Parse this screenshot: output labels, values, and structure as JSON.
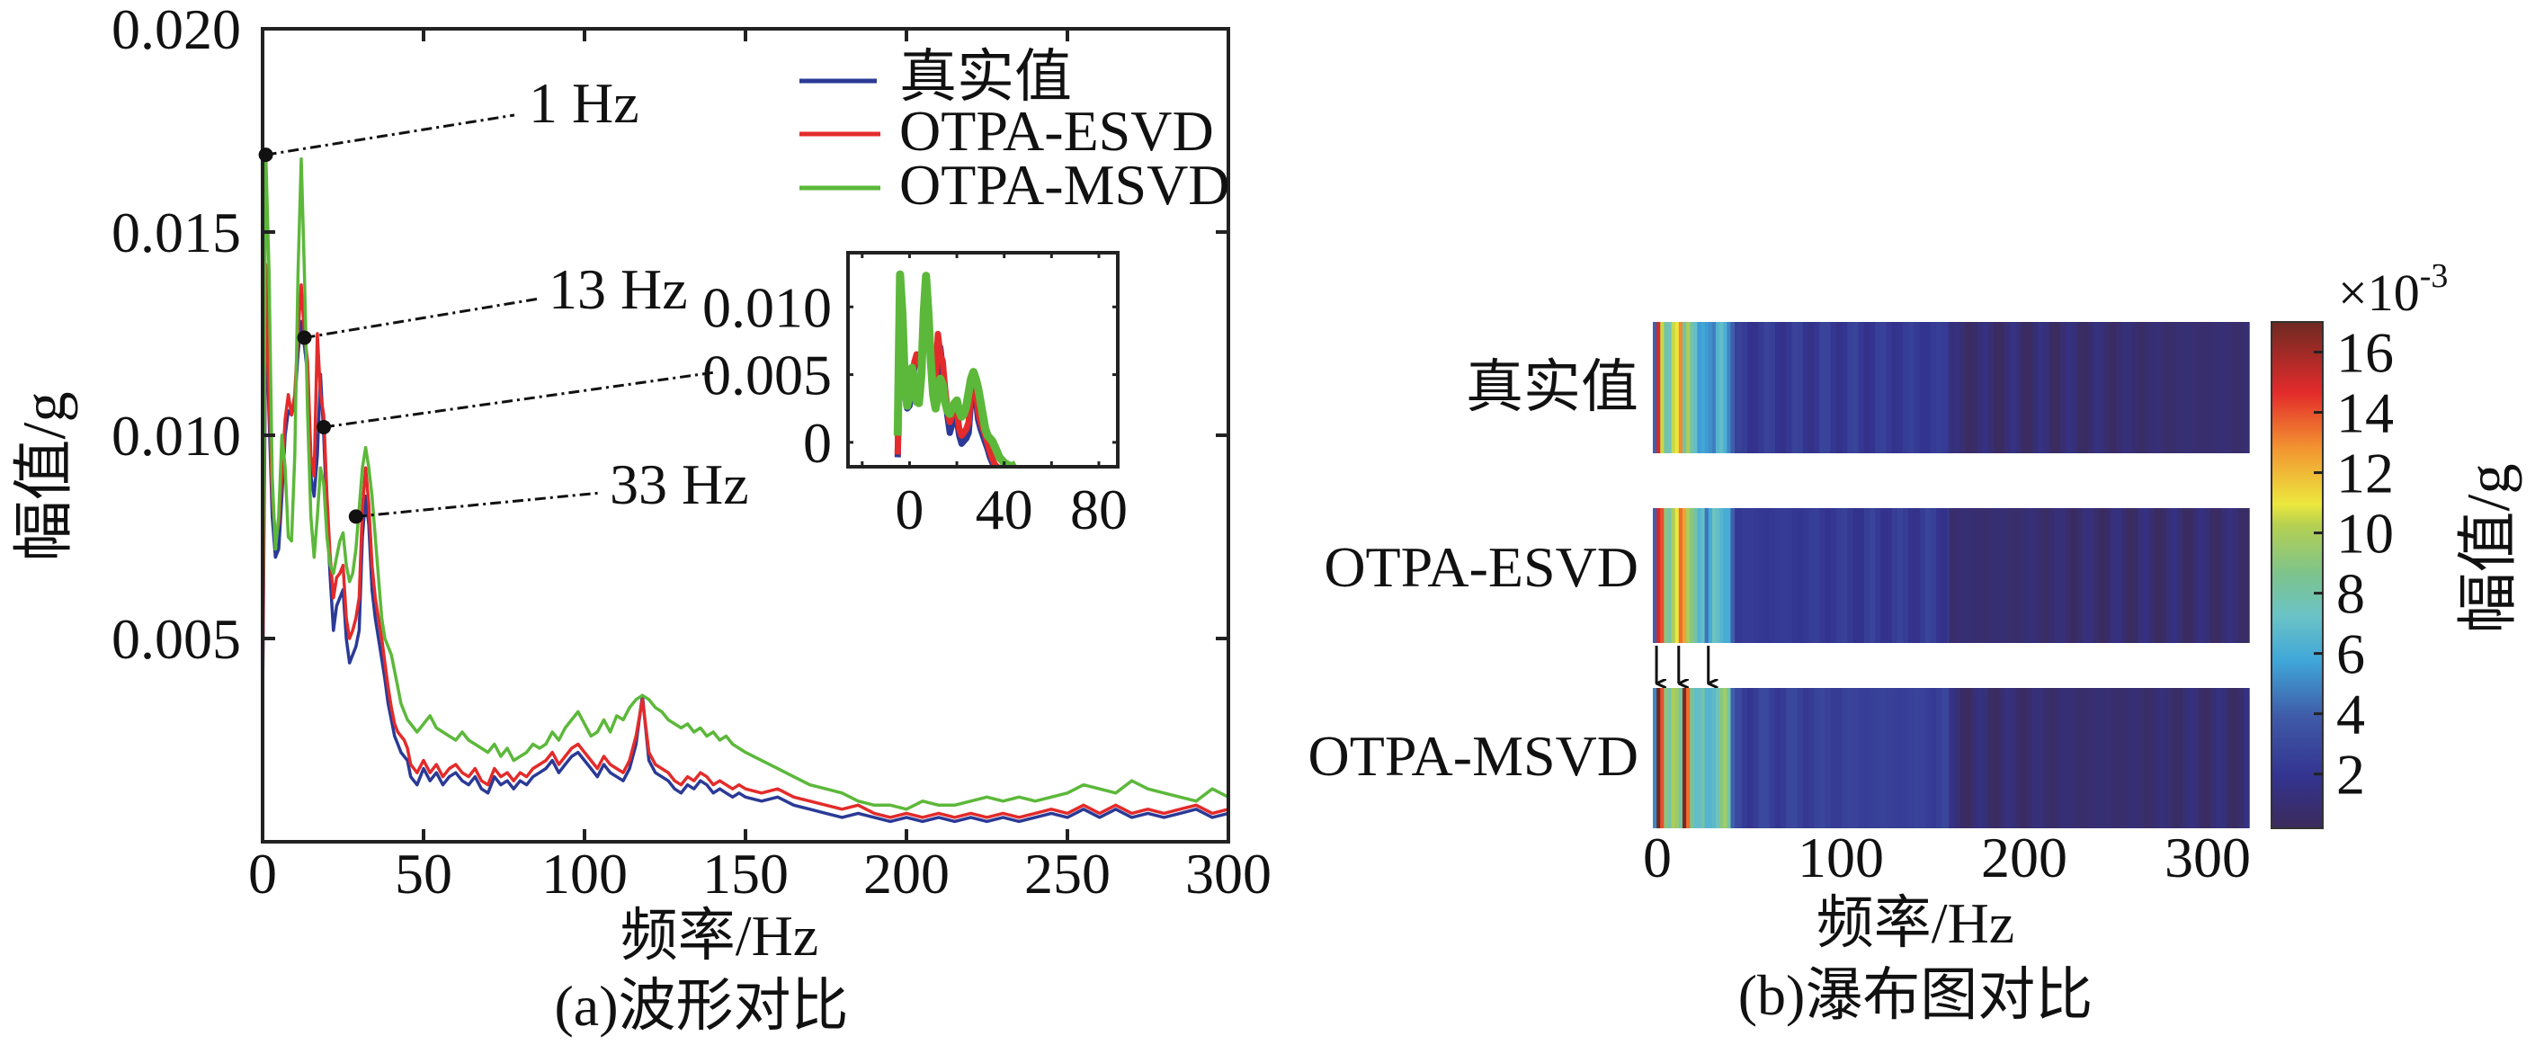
{
  "chart_data": [
    {
      "id": "a",
      "type": "line",
      "caption": "(a)波形对比",
      "xlabel": "频率/Hz",
      "ylabel": "幅值/g",
      "xlim": [
        0,
        300
      ],
      "ylim": [
        0,
        0.02
      ],
      "xticks": [
        0,
        50,
        100,
        150,
        200,
        250,
        300
      ],
      "xtick_labels": [
        "0",
        "50",
        "100",
        "150",
        "200",
        "250",
        "300"
      ],
      "yticks": [
        0.005,
        0.01,
        0.015,
        0.02
      ],
      "ytick_labels": [
        "0.005",
        "0.010",
        "0.015",
        "0.020"
      ],
      "legend": {
        "placement": "top-right",
        "entries": [
          "真实值",
          "OTPA-ESVD",
          "OTPA-MSVD"
        ]
      },
      "series": [
        {
          "name": "真实值",
          "color": "#2b3a96",
          "x": [
            0,
            1,
            2,
            3,
            4,
            5,
            6,
            7,
            8,
            9,
            10,
            11,
            12,
            13,
            14,
            15,
            16,
            17,
            18,
            19,
            20,
            21,
            22,
            23,
            24,
            25,
            26,
            27,
            28,
            29,
            30,
            31,
            32,
            33,
            34,
            35,
            36,
            37,
            38,
            39,
            40,
            41,
            42,
            43,
            44,
            45,
            46,
            48,
            50,
            52,
            54,
            56,
            58,
            60,
            62,
            64,
            66,
            68,
            70,
            72,
            74,
            76,
            78,
            80,
            82,
            84,
            86,
            88,
            90,
            92,
            94,
            96,
            98,
            100,
            102,
            104,
            106,
            108,
            110,
            112,
            114,
            116,
            118,
            120,
            122,
            124,
            126,
            128,
            130,
            132,
            134,
            136,
            138,
            140,
            142,
            144,
            146,
            148,
            150,
            155,
            160,
            165,
            170,
            175,
            180,
            185,
            190,
            195,
            200,
            205,
            210,
            215,
            220,
            225,
            230,
            235,
            240,
            245,
            250,
            255,
            260,
            265,
            270,
            275,
            280,
            285,
            290,
            295,
            300
          ],
          "y": [
            0.0034,
            0.013,
            0.0105,
            0.008,
            0.007,
            0.0072,
            0.0085,
            0.01,
            0.0106,
            0.0105,
            0.0108,
            0.012,
            0.0128,
            0.0122,
            0.0115,
            0.009,
            0.0085,
            0.0095,
            0.0115,
            0.01,
            0.008,
            0.0065,
            0.0052,
            0.0058,
            0.006,
            0.0062,
            0.005,
            0.0044,
            0.0046,
            0.0048,
            0.0052,
            0.0075,
            0.0085,
            0.0078,
            0.0062,
            0.0055,
            0.005,
            0.0045,
            0.004,
            0.0034,
            0.003,
            0.0026,
            0.0024,
            0.0022,
            0.0021,
            0.002,
            0.0016,
            0.0014,
            0.0018,
            0.0015,
            0.0017,
            0.0014,
            0.0016,
            0.0017,
            0.0015,
            0.0014,
            0.0016,
            0.0013,
            0.0012,
            0.0016,
            0.0014,
            0.0015,
            0.0013,
            0.0015,
            0.0014,
            0.0016,
            0.0017,
            0.0018,
            0.002,
            0.0017,
            0.0019,
            0.0021,
            0.0022,
            0.002,
            0.0018,
            0.0016,
            0.0019,
            0.0017,
            0.0016,
            0.0015,
            0.0018,
            0.0024,
            0.0036,
            0.002,
            0.0017,
            0.0016,
            0.0015,
            0.0013,
            0.0012,
            0.0014,
            0.0013,
            0.0015,
            0.0014,
            0.0012,
            0.0013,
            0.0012,
            0.0011,
            0.0012,
            0.0011,
            0.001,
            0.0011,
            0.0009,
            0.0008,
            0.0007,
            0.0006,
            0.0007,
            0.0006,
            0.0005,
            0.0006,
            0.0005,
            0.0006,
            0.0005,
            0.0006,
            0.0005,
            0.0006,
            0.0005,
            0.0006,
            0.0007,
            0.0006,
            0.0008,
            0.0006,
            0.0008,
            0.0006,
            0.0007,
            0.0006,
            0.0007,
            0.0008,
            0.0006,
            0.0007
          ]
        },
        {
          "name": "OTPA-ESVD",
          "color": "#e32b2b",
          "x": [
            0,
            1,
            2,
            3,
            4,
            5,
            6,
            7,
            8,
            9,
            10,
            11,
            12,
            13,
            14,
            15,
            16,
            17,
            18,
            19,
            20,
            21,
            22,
            23,
            24,
            25,
            26,
            27,
            28,
            29,
            30,
            31,
            32,
            33,
            34,
            35,
            36,
            37,
            38,
            39,
            40,
            41,
            42,
            43,
            44,
            45,
            46,
            48,
            50,
            52,
            54,
            56,
            58,
            60,
            62,
            64,
            66,
            68,
            70,
            72,
            74,
            76,
            78,
            80,
            82,
            84,
            86,
            88,
            90,
            92,
            94,
            96,
            98,
            100,
            102,
            104,
            106,
            108,
            110,
            112,
            114,
            116,
            118,
            120,
            122,
            124,
            126,
            128,
            130,
            132,
            134,
            136,
            138,
            140,
            142,
            144,
            146,
            148,
            150,
            155,
            160,
            165,
            170,
            175,
            180,
            185,
            190,
            195,
            200,
            205,
            210,
            215,
            220,
            225,
            230,
            235,
            240,
            245,
            250,
            255,
            260,
            265,
            270,
            275,
            280,
            285,
            290,
            295,
            300
          ],
          "y": [
            0.0036,
            0.0142,
            0.011,
            0.0085,
            0.0075,
            0.0078,
            0.009,
            0.0104,
            0.011,
            0.0105,
            0.011,
            0.0125,
            0.0137,
            0.0125,
            0.0118,
            0.0095,
            0.009,
            0.0125,
            0.011,
            0.0105,
            0.0085,
            0.007,
            0.006,
            0.0065,
            0.0066,
            0.0068,
            0.0055,
            0.005,
            0.0052,
            0.0055,
            0.006,
            0.0082,
            0.0092,
            0.0083,
            0.0068,
            0.006,
            0.0055,
            0.005,
            0.0044,
            0.0038,
            0.0033,
            0.0029,
            0.0027,
            0.0026,
            0.0025,
            0.0023,
            0.0019,
            0.0017,
            0.002,
            0.0017,
            0.0019,
            0.0016,
            0.0018,
            0.0019,
            0.0017,
            0.0016,
            0.0018,
            0.0015,
            0.0014,
            0.0018,
            0.0016,
            0.0017,
            0.0015,
            0.0017,
            0.0016,
            0.0018,
            0.0019,
            0.002,
            0.0022,
            0.0019,
            0.0021,
            0.0023,
            0.0024,
            0.0022,
            0.002,
            0.0018,
            0.0021,
            0.0019,
            0.0018,
            0.0017,
            0.002,
            0.0026,
            0.0035,
            0.0022,
            0.0019,
            0.0018,
            0.0017,
            0.0015,
            0.0014,
            0.0016,
            0.0015,
            0.0017,
            0.0016,
            0.0014,
            0.0015,
            0.0014,
            0.0013,
            0.0014,
            0.0013,
            0.0012,
            0.0013,
            0.0011,
            0.001,
            0.0009,
            0.0008,
            0.0009,
            0.0007,
            0.0006,
            0.0007,
            0.0006,
            0.0007,
            0.0006,
            0.0007,
            0.0006,
            0.0007,
            0.0006,
            0.0007,
            0.0008,
            0.0007,
            0.0009,
            0.0007,
            0.0009,
            0.0007,
            0.0008,
            0.0007,
            0.0008,
            0.0009,
            0.0007,
            0.0008
          ]
        },
        {
          "name": "OTPA-MSVD",
          "color": "#5cb83a",
          "x": [
            0,
            1,
            2,
            3,
            4,
            5,
            6,
            7,
            8,
            9,
            10,
            11,
            12,
            13,
            14,
            15,
            16,
            17,
            18,
            19,
            20,
            21,
            22,
            23,
            24,
            25,
            26,
            27,
            28,
            29,
            30,
            31,
            32,
            33,
            34,
            35,
            36,
            37,
            38,
            39,
            40,
            41,
            42,
            43,
            44,
            45,
            46,
            48,
            50,
            52,
            54,
            56,
            58,
            60,
            62,
            64,
            66,
            68,
            70,
            72,
            74,
            76,
            78,
            80,
            82,
            84,
            86,
            88,
            90,
            92,
            94,
            96,
            98,
            100,
            102,
            104,
            106,
            108,
            110,
            112,
            114,
            116,
            118,
            120,
            122,
            124,
            126,
            128,
            130,
            132,
            134,
            136,
            138,
            140,
            142,
            144,
            146,
            148,
            150,
            155,
            160,
            165,
            170,
            175,
            180,
            185,
            190,
            195,
            200,
            205,
            210,
            215,
            220,
            225,
            230,
            235,
            240,
            245,
            250,
            255,
            260,
            265,
            270,
            275,
            280,
            285,
            290,
            295,
            300
          ],
          "y": [
            0.005,
            0.0169,
            0.014,
            0.009,
            0.0072,
            0.008,
            0.01,
            0.0092,
            0.0075,
            0.0074,
            0.0095,
            0.014,
            0.0168,
            0.014,
            0.0105,
            0.008,
            0.007,
            0.008,
            0.0092,
            0.0088,
            0.0075,
            0.0068,
            0.0066,
            0.007,
            0.0074,
            0.0076,
            0.0068,
            0.0064,
            0.0066,
            0.0072,
            0.0082,
            0.0092,
            0.0097,
            0.0092,
            0.0085,
            0.0075,
            0.0065,
            0.0055,
            0.005,
            0.0048,
            0.0046,
            0.0042,
            0.0038,
            0.0034,
            0.0032,
            0.003,
            0.0029,
            0.0027,
            0.0029,
            0.0031,
            0.0028,
            0.0027,
            0.0026,
            0.0025,
            0.0027,
            0.0025,
            0.0024,
            0.0023,
            0.0022,
            0.0024,
            0.0021,
            0.0023,
            0.002,
            0.0021,
            0.0022,
            0.0024,
            0.0023,
            0.0024,
            0.0027,
            0.0025,
            0.0028,
            0.003,
            0.0032,
            0.0029,
            0.0026,
            0.0027,
            0.003,
            0.0027,
            0.0031,
            0.003,
            0.0033,
            0.0035,
            0.0036,
            0.0035,
            0.0033,
            0.0032,
            0.003,
            0.0029,
            0.0028,
            0.0029,
            0.0027,
            0.0028,
            0.0026,
            0.0027,
            0.0025,
            0.0026,
            0.0024,
            0.0023,
            0.0022,
            0.002,
            0.0018,
            0.0016,
            0.0014,
            0.0013,
            0.0012,
            0.001,
            0.0009,
            0.0009,
            0.0008,
            0.001,
            0.0009,
            0.0009,
            0.001,
            0.0011,
            0.001,
            0.0011,
            0.001,
            0.0011,
            0.0012,
            0.0014,
            0.0013,
            0.0012,
            0.0015,
            0.0013,
            0.0012,
            0.0011,
            0.001,
            0.0013,
            0.0011
          ]
        }
      ],
      "annotations": [
        {
          "text": "1 Hz",
          "x": 1,
          "y": 0.0169
        },
        {
          "text": "13 Hz",
          "x": 13,
          "y": 0.0124
        },
        {
          "text": "",
          "x": 19,
          "y": 0.0102
        },
        {
          "text": "33 Hz",
          "x": 29,
          "y": 0.008
        }
      ],
      "inset": {
        "xlim": [
          -26,
          88
        ],
        "ylim": [
          -0.0018,
          0.014
        ],
        "xticks": [
          0,
          40,
          80
        ],
        "xtick_labels": [
          "0",
          "40",
          "80"
        ],
        "yticks": [
          0,
          0.005,
          0.01
        ],
        "ytick_labels": [
          "0",
          "0.005",
          "0.010"
        ]
      }
    },
    {
      "id": "b",
      "type": "heatmap",
      "caption": "(b)瀑布图对比",
      "xlabel": "频率/Hz",
      "xlim": [
        0,
        320
      ],
      "xticks": [
        0,
        100,
        200,
        300
      ],
      "xtick_labels": [
        "0",
        "100",
        "200",
        "300"
      ],
      "rows": [
        "真实值",
        "OTPA-ESVD",
        "OTPA-MSVD"
      ],
      "colorbar": {
        "label": "幅值/g",
        "exponent_label": "×10",
        "exponent": "-3",
        "range": [
          0.2,
          17
        ],
        "ticks": [
          2,
          4,
          6,
          8,
          10,
          12,
          14,
          16
        ],
        "tick_labels": [
          "2",
          "4",
          "6",
          "8",
          "10",
          "12",
          "14",
          "16"
        ],
        "colormap": "parula"
      },
      "arrows_at_hz": [
        1,
        13,
        29
      ],
      "bands_hz": [
        0,
        2,
        4,
        6,
        8,
        10,
        12,
        14,
        16,
        18,
        20,
        22,
        24,
        26,
        28,
        30,
        32,
        34,
        36,
        38,
        40,
        42
      ],
      "row_low_freq_values": [
        [
          4.0,
          15.0,
          10.5,
          8.0,
          7.5,
          10.5,
          11.0,
          13.0,
          8.0,
          10.0,
          8.0,
          7.0,
          5.5,
          5.8,
          5.5,
          5.2,
          4.8,
          6.5,
          7.0,
          6.2,
          5.0,
          4.0
        ],
        [
          4.0,
          15.0,
          14.0,
          9.0,
          8.0,
          10.0,
          11.0,
          13.5,
          12.5,
          10.0,
          9.0,
          8.0,
          6.5,
          7.0,
          4.5,
          6.0,
          7.5,
          7.0,
          6.5,
          6.0,
          6.0,
          4.0
        ],
        [
          5.0,
          17.0,
          14.0,
          9.0,
          8.0,
          10.0,
          9.5,
          8.0,
          16.8,
          13.5,
          8.5,
          7.0,
          7.0,
          8.0,
          6.5,
          6.5,
          6.8,
          7.5,
          9.0,
          9.7,
          8.0,
          4.0
        ]
      ],
      "row_high_freq_level": [
        {
          "from_hz": 42,
          "to_hz": 160,
          "value": 2.2
        },
        {
          "from_hz": 160,
          "to_hz": 320,
          "value": 0.9
        }
      ]
    }
  ]
}
